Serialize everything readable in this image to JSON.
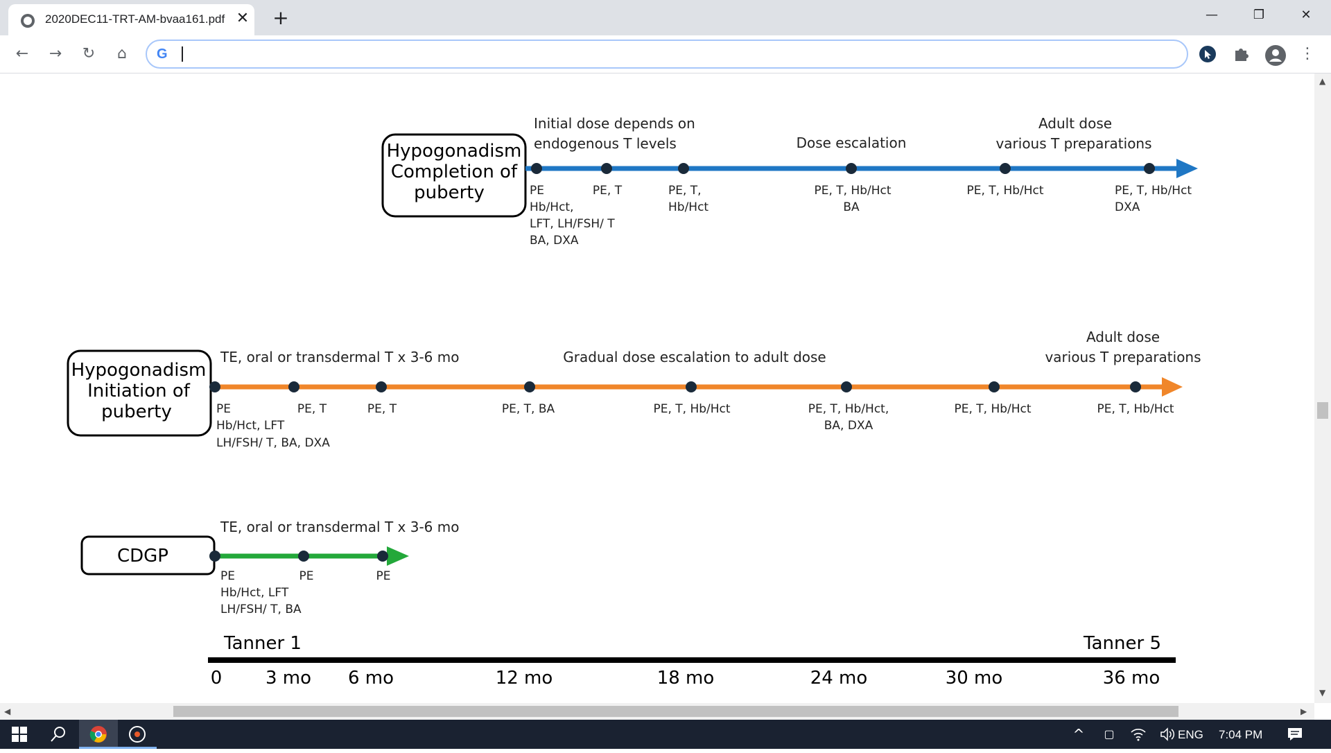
{
  "browser": {
    "tab_title": "2020DEC11-TRT-AM-bvaa161.pdf",
    "tab_close": "✕",
    "new_tab": "+",
    "window_controls": {
      "minimize": "—",
      "restore": "❐",
      "close": "✕"
    },
    "nav": {
      "back": "←",
      "forward": "→",
      "reload": "↻",
      "home": "⌂",
      "menu": "⋮"
    },
    "address_value": ""
  },
  "diagram": {
    "rows": [
      {
        "box_label": [
          "Hypogonadism",
          "Completion of",
          "puberty"
        ],
        "color": "#1f77c4",
        "phase_labels": [
          [
            "Initial dose depends on",
            "endogenous T levels"
          ],
          [
            "Dose escalation"
          ],
          [
            "Adult dose",
            "various T preparations"
          ]
        ],
        "visits": [
          [
            "PE",
            "Hb/Hct,",
            "LFT, LH/FSH/ T",
            "BA, DXA"
          ],
          [
            "PE, T"
          ],
          [
            "PE, T,",
            "Hb/Hct"
          ],
          [
            "PE, T, Hb/Hct",
            "BA"
          ],
          [
            "PE, T, Hb/Hct"
          ],
          [
            "PE, T, Hb/Hct",
            "DXA"
          ]
        ]
      },
      {
        "box_label": [
          "Hypogonadism",
          "Initiation of",
          "puberty"
        ],
        "color": "#f0862a",
        "phase_labels": [
          [
            "TE, oral or transdermal T x 3-6 mo"
          ],
          [
            "Gradual dose escalation to adult dose"
          ],
          [
            "Adult dose",
            "various T preparations"
          ]
        ],
        "visits": [
          [
            "PE",
            "Hb/Hct, LFT",
            "LH/FSH/ T, BA, DXA"
          ],
          [
            "PE, T"
          ],
          [
            "PE, T"
          ],
          [
            "PE, T,  BA"
          ],
          [
            "PE, T, Hb/Hct"
          ],
          [
            "PE, T, Hb/Hct,",
            "BA, DXA"
          ],
          [
            "PE, T, Hb/Hct"
          ],
          [
            "PE, T, Hb/Hct"
          ]
        ]
      },
      {
        "box_label": [
          "CDGP"
        ],
        "color": "#23a83a",
        "phase_labels": [
          [
            "TE, oral or transdermal T x 3-6 mo"
          ]
        ],
        "visits": [
          [
            "PE",
            "Hb/Hct, LFT",
            "LH/FSH/ T, BA"
          ],
          [
            "PE"
          ],
          [
            "PE"
          ]
        ]
      }
    ],
    "tanner_start": "Tanner 1",
    "tanner_end": "Tanner 5",
    "time_ticks": [
      "0",
      "3 mo",
      "6 mo",
      "12 mo",
      "18 mo",
      "24 mo",
      "30 mo",
      "36 mo"
    ]
  },
  "taskbar": {
    "language": "ENG",
    "time": "7:04 PM"
  }
}
